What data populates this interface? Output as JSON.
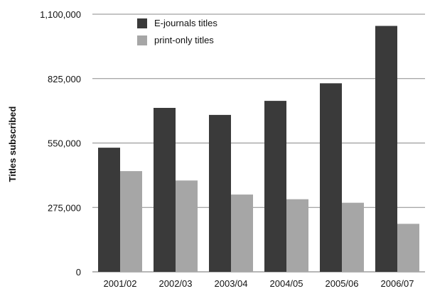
{
  "chart_data": {
    "type": "bar",
    "title": "",
    "xlabel": "",
    "ylabel": "Titles subscribed",
    "ylim": [
      0,
      1100000
    ],
    "yticks": [
      0,
      275000,
      550000,
      825000,
      1100000
    ],
    "ytick_labels": [
      "0",
      "275,000",
      "550,000",
      "825,000",
      "1,100,000"
    ],
    "grid": true,
    "legend_position": "top-left",
    "categories": [
      "2001/02",
      "2002/03",
      "2003/04",
      "2004/05",
      "2005/06",
      "2006/07"
    ],
    "series": [
      {
        "name": "E-journals titles",
        "color": "#3a3a3a",
        "values": [
          530000,
          700000,
          670000,
          730000,
          805000,
          1050000
        ]
      },
      {
        "name": "print-only titles",
        "color": "#a6a6a6",
        "values": [
          430000,
          390000,
          330000,
          310000,
          295000,
          205000
        ]
      }
    ]
  }
}
